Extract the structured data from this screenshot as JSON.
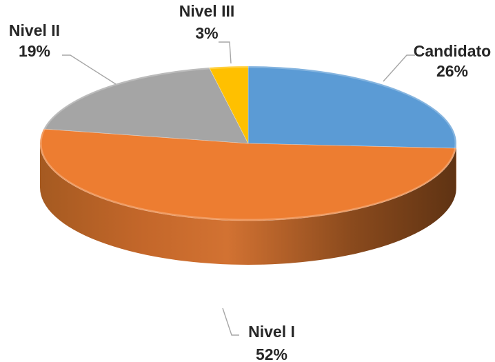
{
  "chart_data": {
    "type": "pie",
    "title": "",
    "categories": [
      "Candidato",
      "Nivel I",
      "Nivel II",
      "Nivel III"
    ],
    "values": [
      26,
      52,
      19,
      3
    ],
    "value_labels": [
      "26%",
      "52%",
      "19%",
      "3%"
    ],
    "colors": [
      "#5b9bd5",
      "#ed7d31",
      "#a5a5a5",
      "#ffc000"
    ],
    "style": "3d-pie",
    "legend": "none",
    "data_labels": "category-and-percent-outside-with-leader-lines"
  }
}
